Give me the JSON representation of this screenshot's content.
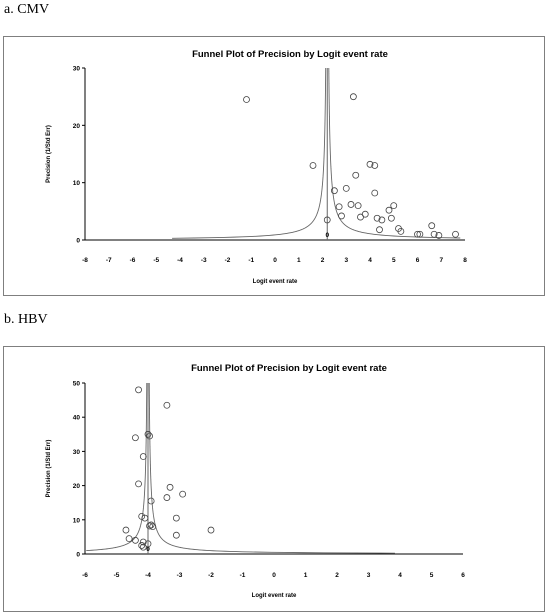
{
  "panels": {
    "a": {
      "label": "a. CMV"
    },
    "b": {
      "label": "b. HBV"
    }
  },
  "chart_data": [
    {
      "type": "scatter",
      "title": "Funnel Plot of Precision by Logit event rate",
      "xlabel": "Logit event rate",
      "ylabel": "Precision (1/Std Err)",
      "xlim": [
        -8,
        8
      ],
      "ylim": [
        0,
        30
      ],
      "xticks": [
        -8,
        -7,
        -6,
        -5,
        -4,
        -3,
        -2,
        -1,
        0,
        1,
        2,
        3,
        4,
        5,
        6,
        7,
        8
      ],
      "yticks": [
        0,
        10,
        20,
        30
      ],
      "center": 2.2,
      "center_tick_label": "0",
      "colors": {
        "points": "#444444",
        "funnel": "#666666"
      },
      "points": [
        {
          "x": -1.2,
          "y": 24.5
        },
        {
          "x": 3.3,
          "y": 25.0
        },
        {
          "x": 1.6,
          "y": 13.0
        },
        {
          "x": 4.0,
          "y": 13.2
        },
        {
          "x": 4.2,
          "y": 13.0
        },
        {
          "x": 3.4,
          "y": 11.3
        },
        {
          "x": 2.5,
          "y": 8.6
        },
        {
          "x": 3.0,
          "y": 9.0
        },
        {
          "x": 4.2,
          "y": 8.2
        },
        {
          "x": 2.2,
          "y": 3.5
        },
        {
          "x": 2.7,
          "y": 5.8
        },
        {
          "x": 3.2,
          "y": 6.2
        },
        {
          "x": 3.5,
          "y": 6.0
        },
        {
          "x": 5.0,
          "y": 6.0
        },
        {
          "x": 2.8,
          "y": 4.2
        },
        {
          "x": 3.6,
          "y": 4.0
        },
        {
          "x": 3.8,
          "y": 4.5
        },
        {
          "x": 4.3,
          "y": 3.8
        },
        {
          "x": 4.5,
          "y": 3.5
        },
        {
          "x": 4.8,
          "y": 5.2
        },
        {
          "x": 4.9,
          "y": 3.8
        },
        {
          "x": 4.4,
          "y": 1.8
        },
        {
          "x": 5.2,
          "y": 2.0
        },
        {
          "x": 5.3,
          "y": 1.5
        },
        {
          "x": 6.0,
          "y": 1.0
        },
        {
          "x": 6.1,
          "y": 1.0
        },
        {
          "x": 6.6,
          "y": 2.5
        },
        {
          "x": 6.7,
          "y": 1.0
        },
        {
          "x": 6.9,
          "y": 0.8
        },
        {
          "x": 7.6,
          "y": 1.0
        }
      ]
    },
    {
      "type": "scatter",
      "title": "Funnel Plot of Precision by Logit event rate",
      "xlabel": "Logit event rate",
      "ylabel": "Precision (1/Std Err)",
      "xlim": [
        -6,
        6
      ],
      "ylim": [
        0,
        50
      ],
      "xticks": [
        -6,
        -5,
        -4,
        -3,
        -2,
        -1,
        0,
        1,
        2,
        3,
        4,
        5,
        6
      ],
      "yticks": [
        0,
        10,
        20,
        30,
        40,
        50
      ],
      "center": -4.0,
      "center_tick_label": "0",
      "colors": {
        "points": "#444444",
        "funnel": "#666666"
      },
      "points": [
        {
          "x": -4.3,
          "y": 48.0
        },
        {
          "x": -3.4,
          "y": 43.5
        },
        {
          "x": -4.4,
          "y": 34.0
        },
        {
          "x": -4.0,
          "y": 35.0
        },
        {
          "x": -3.95,
          "y": 34.5
        },
        {
          "x": -4.15,
          "y": 28.5
        },
        {
          "x": -4.3,
          "y": 20.5
        },
        {
          "x": -3.3,
          "y": 19.5
        },
        {
          "x": -2.9,
          "y": 17.5
        },
        {
          "x": -3.4,
          "y": 16.5
        },
        {
          "x": -3.9,
          "y": 15.5
        },
        {
          "x": -4.2,
          "y": 11.0
        },
        {
          "x": -4.1,
          "y": 10.5
        },
        {
          "x": -3.1,
          "y": 10.5
        },
        {
          "x": -3.95,
          "y": 8.2
        },
        {
          "x": -3.9,
          "y": 8.5
        },
        {
          "x": -3.85,
          "y": 8.0
        },
        {
          "x": -2.0,
          "y": 7.0
        },
        {
          "x": -4.7,
          "y": 7.0
        },
        {
          "x": -3.1,
          "y": 5.5
        },
        {
          "x": -4.6,
          "y": 4.5
        },
        {
          "x": -4.4,
          "y": 4.0
        },
        {
          "x": -4.15,
          "y": 3.5
        },
        {
          "x": -4.0,
          "y": 3.0
        },
        {
          "x": -4.2,
          "y": 2.5
        },
        {
          "x": -4.15,
          "y": 2.0
        }
      ]
    }
  ]
}
